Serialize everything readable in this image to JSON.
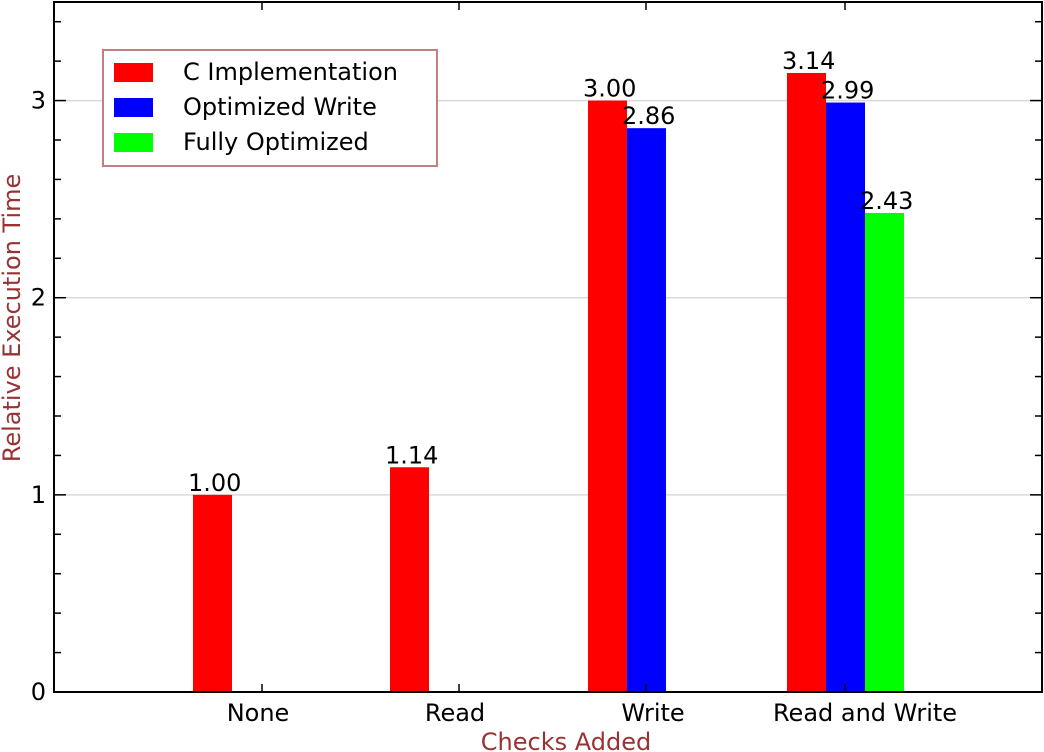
{
  "chart_data": {
    "type": "bar",
    "title": "",
    "xlabel": "Checks Added",
    "ylabel": "Relative Execution Time",
    "categories": [
      "None",
      "Read",
      "Write",
      "Read and Write"
    ],
    "ylim": [
      0,
      3.5
    ],
    "yticks": [
      0,
      1,
      2,
      3
    ],
    "grid": "horizontal",
    "legend_position": "top-left",
    "series": [
      {
        "name": "C Implementation",
        "color": "#ff0000",
        "values": [
          1.0,
          1.14,
          3.0,
          3.14
        ],
        "labels": [
          "1.00",
          "1.14",
          "3.00",
          "3.14"
        ]
      },
      {
        "name": "Optimized Write",
        "color": "#0000ff",
        "values": [
          null,
          null,
          2.86,
          2.99
        ],
        "labels": [
          null,
          null,
          "2.86",
          "2.99"
        ]
      },
      {
        "name": "Fully Optimized",
        "color": "#00ff00",
        "values": [
          null,
          null,
          null,
          2.43
        ],
        "labels": [
          null,
          null,
          null,
          "2.43"
        ]
      }
    ]
  }
}
